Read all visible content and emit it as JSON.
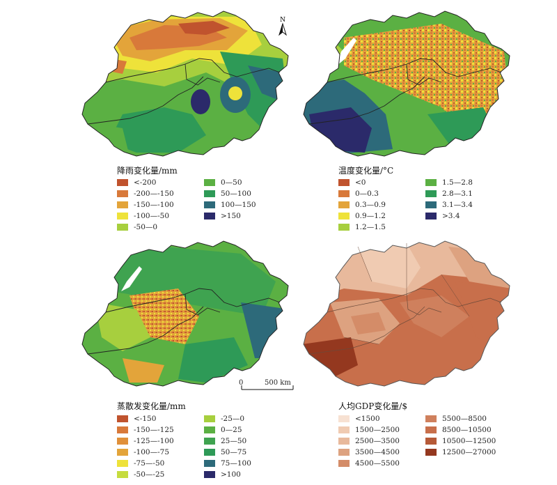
{
  "north_label": "N",
  "scale": {
    "zero": "0",
    "distance": "500 km"
  },
  "panels": {
    "precip": {
      "title": "降雨变化量/mm",
      "legend": [
        {
          "label": "<-200",
          "color": "#c0532e"
        },
        {
          "label": "-200—-150",
          "color": "#d8793a"
        },
        {
          "label": "-150—-100",
          "color": "#e3a43a"
        },
        {
          "label": "-100—-50",
          "color": "#eee23a"
        },
        {
          "label": "-50—0",
          "color": "#a7cf3e"
        },
        {
          "label": "0—50",
          "color": "#5bb043"
        },
        {
          "label": "50—100",
          "color": "#2e9a57"
        },
        {
          "label": "100—150",
          "color": "#2d6a7a"
        },
        {
          "label": ">150",
          "color": "#2b2a6a"
        }
      ]
    },
    "temp": {
      "title": "温度变化量/°C",
      "legend": [
        {
          "label": "<0",
          "color": "#c0532e"
        },
        {
          "label": "0—0.3",
          "color": "#d8793a"
        },
        {
          "label": "0.3—0.9",
          "color": "#e3a43a"
        },
        {
          "label": "0.9—1.2",
          "color": "#eee23a"
        },
        {
          "label": "1.2—1.5",
          "color": "#a7cf3e"
        },
        {
          "label": "1.5—2.8",
          "color": "#5bb043"
        },
        {
          "label": "2.8—3.1",
          "color": "#2e9a57"
        },
        {
          "label": "3.1—3.4",
          "color": "#2d6a7a"
        },
        {
          "label": ">3.4",
          "color": "#2b2a6a"
        }
      ]
    },
    "evap": {
      "title": "蒸散发变化量/mm",
      "legend": [
        {
          "label": "<-150",
          "color": "#c0532e"
        },
        {
          "label": "-150—-125",
          "color": "#d8793a"
        },
        {
          "label": "-125—-100",
          "color": "#e0903a"
        },
        {
          "label": "-100—-75",
          "color": "#e3a43a"
        },
        {
          "label": "-75—-50",
          "color": "#eee23a"
        },
        {
          "label": "-50—-25",
          "color": "#c6dc3e"
        },
        {
          "label": "-25—0",
          "color": "#a7cf3e"
        },
        {
          "label": "0—25",
          "color": "#5bb043"
        },
        {
          "label": "25—50",
          "color": "#3fa350"
        },
        {
          "label": "50—75",
          "color": "#2e9a57"
        },
        {
          "label": "75—100",
          "color": "#2d6a7a"
        },
        {
          "label": ">100",
          "color": "#2b2a6a"
        }
      ]
    },
    "gdp": {
      "title": "人均GDP变化量/$",
      "legend": [
        {
          "label": "<1500",
          "color": "#f7e1d2"
        },
        {
          "label": "1500—2500",
          "color": "#f0cbb2"
        },
        {
          "label": "2500—3500",
          "color": "#e8b99c"
        },
        {
          "label": "3500—4500",
          "color": "#dda280"
        },
        {
          "label": "4500—5500",
          "color": "#d48c68"
        },
        {
          "label": "5500—8500",
          "color": "#cf805d"
        },
        {
          "label": "8500—10500",
          "color": "#c86f4b"
        },
        {
          "label": "10500—12500",
          "color": "#b65a38"
        },
        {
          "label": "12500—27000",
          "color": "#94381f"
        }
      ]
    }
  }
}
